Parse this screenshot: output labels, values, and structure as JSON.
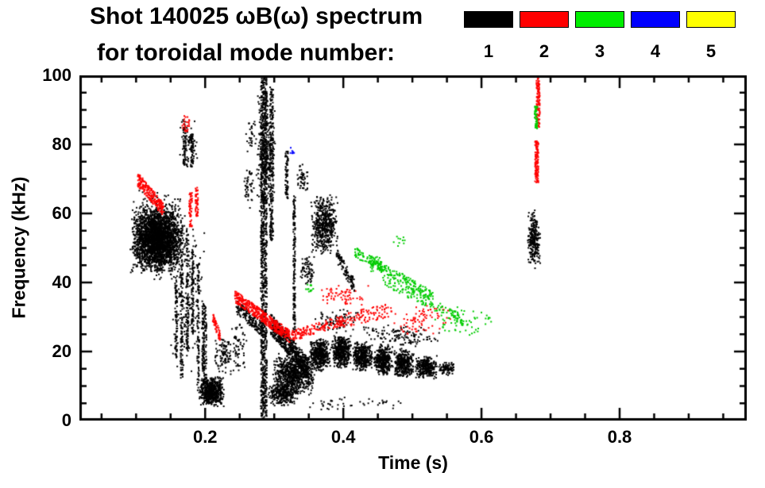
{
  "title": {
    "line1": "Shot 140025 ωB(ω) spectrum",
    "line2": "for toroidal mode number:"
  },
  "legend": {
    "entries": [
      {
        "label": "1",
        "color": "#000000"
      },
      {
        "label": "2",
        "color": "#ff0000"
      },
      {
        "label": "3",
        "color": "#00ee00"
      },
      {
        "label": "4",
        "color": "#0000ff"
      },
      {
        "label": "5",
        "color": "#ffff00"
      }
    ]
  },
  "axes": {
    "x": {
      "label": "Time (s)",
      "ticks": [
        0.2,
        0.4,
        0.6,
        0.8
      ],
      "tick_labels": [
        "0.2",
        "0.4",
        "0.6",
        "0.8"
      ],
      "minor_step": 0.05,
      "lim": [
        0.018,
        0.984
      ]
    },
    "y": {
      "label": "Frequency (kHz)",
      "ticks": [
        0,
        20,
        40,
        60,
        80,
        100
      ],
      "tick_labels": [
        "0",
        "20",
        "40",
        "60",
        "80",
        "100"
      ],
      "minor_step": 5,
      "lim": [
        0,
        100
      ]
    }
  },
  "chart_data": {
    "type": "scatter",
    "title": "Shot 140025 ωB(ω) spectrum for toroidal mode number",
    "xlabel": "Time (s)",
    "ylabel": "Frequency (kHz)",
    "xlim": [
      0.018,
      0.984
    ],
    "ylim": [
      0,
      100
    ],
    "legend": [
      "1",
      "2",
      "3",
      "4",
      "5"
    ],
    "legend_position": "top-right",
    "grid": false,
    "series": [
      {
        "name": "1",
        "color": "#000000",
        "clusters": [
          {
            "type": "blob",
            "t": [
              0.093,
              0.168
            ],
            "f": [
              43,
              62
            ],
            "n": 2400
          },
          {
            "type": "blob",
            "t": [
              0.088,
              0.174
            ],
            "f": [
              40,
              67
            ],
            "n": 500
          },
          {
            "type": "blob",
            "t": [
              0.162,
              0.19
            ],
            "f": [
              72,
              88
            ],
            "n": 70
          },
          {
            "type": "vline",
            "t": 0.17,
            "w": 0.004,
            "f": [
              74,
              87
            ],
            "n": 55
          },
          {
            "type": "vline",
            "t": 0.181,
            "w": 0.004,
            "f": [
              73,
              83
            ],
            "n": 50
          },
          {
            "type": "vline",
            "t": 0.158,
            "w": 0.003,
            "f": [
              18,
              42
            ],
            "n": 90
          },
          {
            "type": "vline",
            "t": 0.166,
            "w": 0.003,
            "f": [
              12,
              58
            ],
            "n": 130
          },
          {
            "type": "vline",
            "t": 0.174,
            "w": 0.003,
            "f": [
              20,
              56
            ],
            "n": 110
          },
          {
            "type": "vline",
            "t": 0.182,
            "w": 0.003,
            "f": [
              24,
              50
            ],
            "n": 90
          },
          {
            "type": "vline",
            "t": 0.19,
            "w": 0.003,
            "f": [
              8,
              46
            ],
            "n": 100
          },
          {
            "type": "vline",
            "t": 0.197,
            "w": 0.003,
            "f": [
              14,
              36
            ],
            "n": 70
          },
          {
            "type": "blob",
            "t": [
              0.15,
              0.202
            ],
            "f": [
              10,
              60
            ],
            "n": 170
          },
          {
            "type": "vline",
            "t": 0.2,
            "w": 0.004,
            "f": [
              5,
              34
            ],
            "n": 110
          },
          {
            "type": "blob",
            "t": [
              0.19,
              0.228
            ],
            "f": [
              4,
              13
            ],
            "n": 600
          },
          {
            "type": "blob",
            "t": [
              0.213,
              0.24
            ],
            "f": [
              13,
              25
            ],
            "n": 90
          },
          {
            "type": "blob",
            "t": [
              0.228,
              0.262
            ],
            "f": [
              13,
              30
            ],
            "n": 70
          },
          {
            "type": "band",
            "t": [
              0.245,
              0.285
            ],
            "f": [
              33,
              26
            ],
            "thick": 4,
            "n": 180
          },
          {
            "type": "blob",
            "t": [
              0.255,
              0.272
            ],
            "f": [
              61,
              74
            ],
            "n": 45
          },
          {
            "type": "blob",
            "t": [
              0.258,
              0.275
            ],
            "f": [
              77,
              88
            ],
            "n": 30
          },
          {
            "type": "vline",
            "t": 0.285,
            "w": 0.009,
            "f": [
              0,
              100
            ],
            "n": 1000
          },
          {
            "type": "vline",
            "t": 0.296,
            "w": 0.005,
            "f": [
              52,
              96
            ],
            "n": 220
          },
          {
            "type": "blob",
            "t": [
              0.274,
              0.302
            ],
            "f": [
              58,
              100
            ],
            "n": 300
          },
          {
            "type": "band",
            "t": [
              0.295,
              0.35
            ],
            "f": [
              28,
              15
            ],
            "thick": 6,
            "n": 550
          },
          {
            "type": "blob",
            "t": [
              0.296,
              0.36
            ],
            "f": [
              7,
              20
            ],
            "n": 800
          },
          {
            "type": "blob",
            "t": [
              0.29,
              0.335
            ],
            "f": [
              4,
              11
            ],
            "n": 300
          },
          {
            "type": "blob",
            "t": [
              0.35,
              0.382
            ],
            "f": [
              14,
              24
            ],
            "n": 450
          },
          {
            "type": "blob",
            "t": [
              0.382,
              0.412
            ],
            "f": [
              15,
              25
            ],
            "n": 430
          },
          {
            "type": "blob",
            "t": [
              0.412,
              0.443
            ],
            "f": [
              14,
              23
            ],
            "n": 380
          },
          {
            "type": "blob",
            "t": [
              0.443,
              0.472
            ],
            "f": [
              13,
              22
            ],
            "n": 360
          },
          {
            "type": "blob",
            "t": [
              0.472,
              0.503
            ],
            "f": [
              12,
              21
            ],
            "n": 360
          },
          {
            "type": "blob",
            "t": [
              0.503,
              0.537
            ],
            "f": [
              12,
              19
            ],
            "n": 300
          },
          {
            "type": "blob",
            "t": [
              0.537,
              0.563
            ],
            "f": [
              13,
              17
            ],
            "n": 90
          },
          {
            "type": "blob",
            "t": [
              0.42,
              0.545
            ],
            "f": [
              21,
              28
            ],
            "n": 130
          },
          {
            "type": "blob",
            "t": [
              0.355,
              0.43
            ],
            "f": [
              25,
              33
            ],
            "n": 80
          },
          {
            "type": "blob",
            "t": [
              0.3,
              0.5
            ],
            "f": [
              3,
              7
            ],
            "n": 45
          },
          {
            "type": "vline",
            "t": 0.329,
            "w": 0.003,
            "f": [
              25,
              65
            ],
            "n": 170
          },
          {
            "type": "blob",
            "t": [
              0.353,
              0.392
            ],
            "f": [
              48,
              66
            ],
            "n": 500
          },
          {
            "type": "band",
            "t": [
              0.39,
              0.416
            ],
            "f": [
              48,
              39
            ],
            "thick": 4,
            "n": 110
          },
          {
            "type": "blob",
            "t": [
              0.338,
              0.358
            ],
            "f": [
              39,
              48
            ],
            "n": 70
          },
          {
            "type": "vline",
            "t": 0.318,
            "w": 0.004,
            "f": [
              64,
              78
            ],
            "n": 70
          },
          {
            "type": "blob",
            "t": [
              0.333,
              0.35
            ],
            "f": [
              66,
              75
            ],
            "n": 50
          },
          {
            "type": "blob",
            "t": [
              0.666,
              0.686
            ],
            "f": [
              44,
              61
            ],
            "n": 260
          }
        ]
      },
      {
        "name": "2",
        "color": "#ff0000",
        "clusters": [
          {
            "type": "band",
            "t": [
              0.102,
              0.14
            ],
            "f": [
              70,
              61
            ],
            "thick": 4,
            "n": 220
          },
          {
            "type": "vline",
            "t": 0.179,
            "w": 0.004,
            "f": [
              56,
              66
            ],
            "n": 55
          },
          {
            "type": "vline",
            "t": 0.188,
            "w": 0.004,
            "f": [
              59,
              68
            ],
            "n": 45
          },
          {
            "type": "blob",
            "t": [
              0.166,
              0.18
            ],
            "f": [
              83,
              89
            ],
            "n": 26
          },
          {
            "type": "band",
            "t": [
              0.211,
              0.222
            ],
            "f": [
              30,
              24
            ],
            "thick": 3,
            "n": 55
          },
          {
            "type": "band",
            "t": [
              0.243,
              0.325
            ],
            "f": [
              36,
              24
            ],
            "thick": 3.5,
            "n": 450
          },
          {
            "type": "band",
            "t": [
              0.325,
              0.4
            ],
            "f": [
              24.5,
              29
            ],
            "thick": 3,
            "n": 160
          },
          {
            "type": "band",
            "t": [
              0.4,
              0.47
            ],
            "f": [
              29,
              32
            ],
            "thick": 4,
            "n": 100
          },
          {
            "type": "blob",
            "t": [
              0.47,
              0.56
            ],
            "f": [
              24,
              34
            ],
            "n": 80
          },
          {
            "type": "blob",
            "t": [
              0.36,
              0.44
            ],
            "f": [
              33,
              40
            ],
            "n": 65
          },
          {
            "type": "vline",
            "t": 0.68,
            "w": 0.005,
            "f": [
              69,
              81
            ],
            "n": 120
          },
          {
            "type": "vline",
            "t": 0.682,
            "w": 0.005,
            "f": [
              85,
              100
            ],
            "n": 120
          }
        ]
      },
      {
        "name": "3",
        "color": "#00cc00",
        "clusters": [
          {
            "type": "band",
            "t": [
              0.415,
              0.53
            ],
            "f": [
              49,
              36
            ],
            "thick": 3,
            "n": 220
          },
          {
            "type": "band",
            "t": [
              0.455,
              0.575
            ],
            "f": [
              41,
              29
            ],
            "thick": 3,
            "n": 130
          },
          {
            "type": "blob",
            "t": [
              0.53,
              0.62
            ],
            "f": [
              24,
              33
            ],
            "n": 60
          },
          {
            "type": "blob",
            "t": [
              0.435,
              0.458
            ],
            "f": [
              43,
              48
            ],
            "n": 35
          },
          {
            "type": "vline",
            "t": 0.679,
            "w": 0.004,
            "f": [
              84,
              91
            ],
            "n": 50
          },
          {
            "type": "blob",
            "t": [
              0.345,
              0.36
            ],
            "f": [
              36,
              40
            ],
            "n": 12
          },
          {
            "type": "blob",
            "t": [
              0.47,
              0.492
            ],
            "f": [
              50,
              54
            ],
            "n": 10
          }
        ]
      },
      {
        "name": "4",
        "color": "#0000ff",
        "clusters": [
          {
            "type": "blob",
            "t": [
              0.322,
              0.331
            ],
            "f": [
              76,
              80
            ],
            "n": 8
          }
        ]
      },
      {
        "name": "5",
        "color": "#ffff00",
        "clusters": []
      }
    ]
  }
}
